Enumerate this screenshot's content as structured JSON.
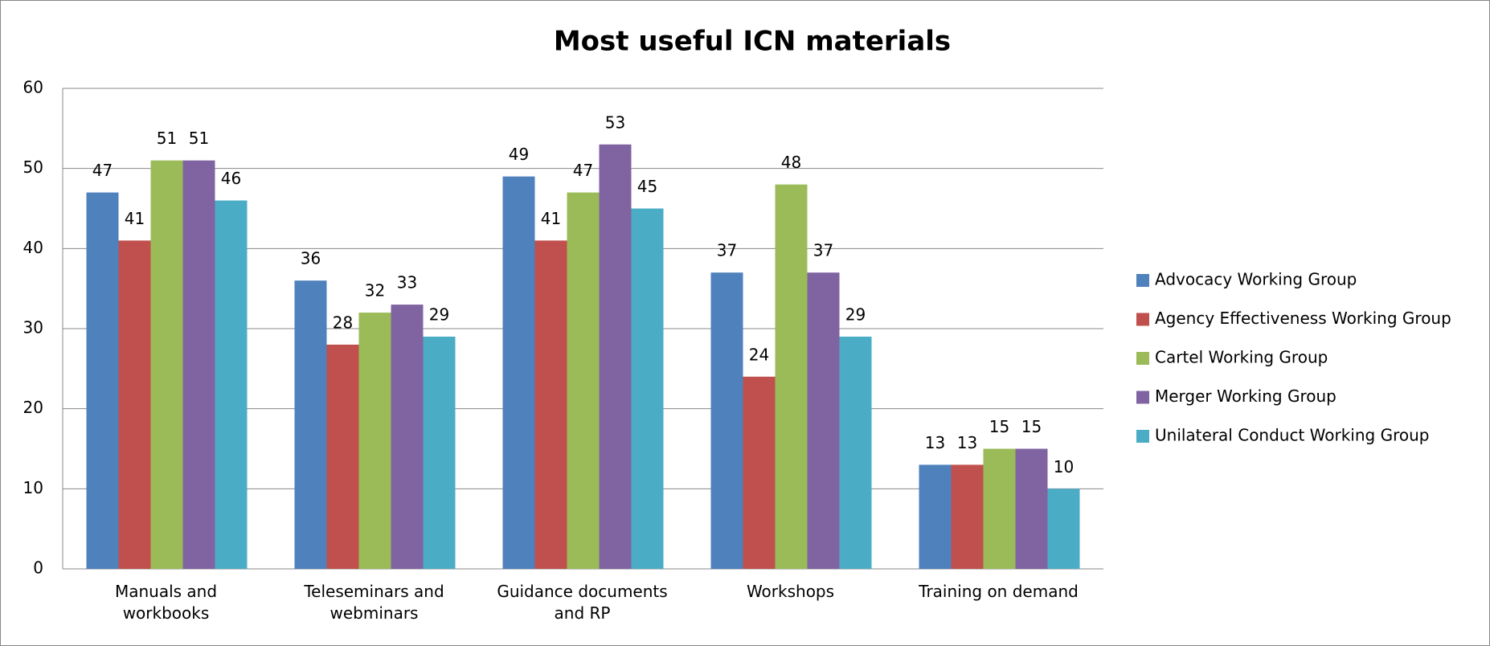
{
  "chart_data": {
    "type": "bar",
    "title": "Most useful ICN materials",
    "categories": [
      "Manuals and\nworkbooks",
      "Teleseminars and\nwebminars",
      "Guidance documents\nand RP",
      "Workshops",
      "Training on demand"
    ],
    "series": [
      {
        "name": "Advocacy Working Group",
        "color": "#4f81bd",
        "values": [
          47,
          36,
          49,
          37,
          13
        ]
      },
      {
        "name": "Agency Effectiveness Working Group",
        "color": "#c0504d",
        "values": [
          41,
          28,
          41,
          24,
          13
        ]
      },
      {
        "name": "Cartel Working Group",
        "color": "#9bbb59",
        "values": [
          51,
          32,
          47,
          48,
          15
        ]
      },
      {
        "name": "Merger Working Group",
        "color": "#8064a2",
        "values": [
          51,
          33,
          53,
          37,
          15
        ]
      },
      {
        "name": "Unilateral Conduct Working Group",
        "color": "#4bacc6",
        "values": [
          46,
          29,
          45,
          29,
          10
        ]
      }
    ],
    "ylim": [
      0,
      60
    ],
    "yticks": [
      0,
      10,
      20,
      30,
      40,
      50,
      60
    ],
    "grid": true,
    "legend": "right"
  }
}
